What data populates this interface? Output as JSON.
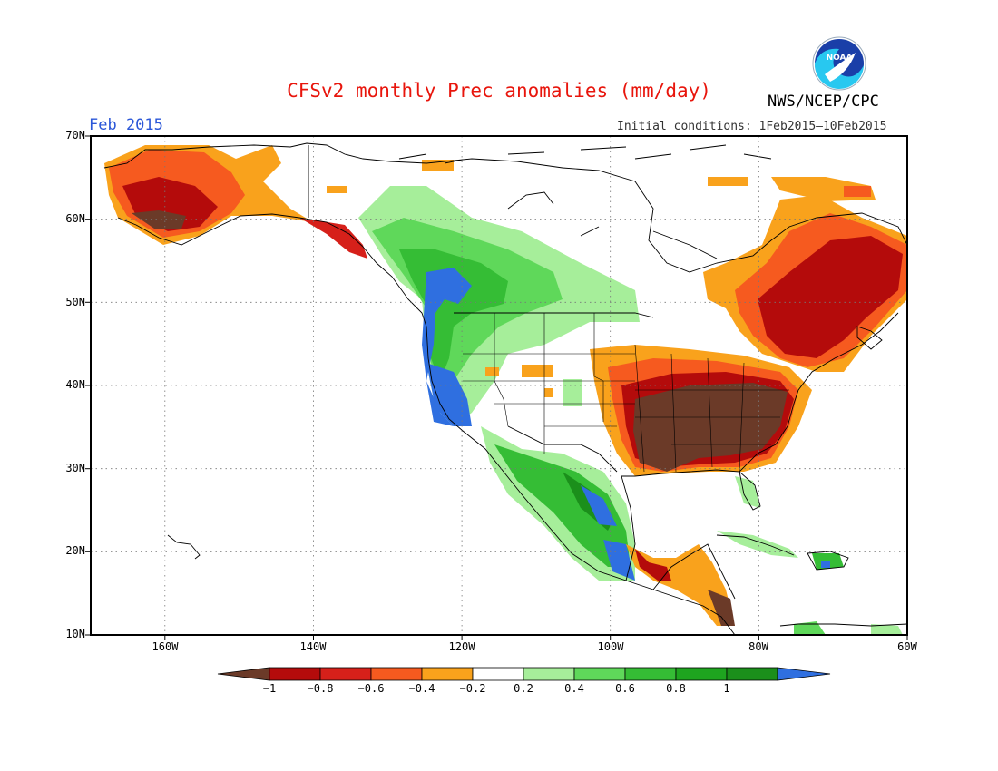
{
  "title": "CFSv2 monthly Prec anomalies (mm/day)",
  "agency": "NWS/NCEP/CPC",
  "logo_text": "NOAA",
  "month_label": "Feb 2015",
  "initial_conditions": "Initial conditions: 1Feb2015–10Feb2015",
  "lat_labels": [
    "70N",
    "60N",
    "50N",
    "40N",
    "30N",
    "20N",
    "10N"
  ],
  "lon_labels": [
    "160W",
    "140W",
    "120W",
    "100W",
    "80W",
    "60W"
  ],
  "colorbar": {
    "colors": [
      "#6b3a28",
      "#b40b0b",
      "#d6201a",
      "#f65a1f",
      "#f9a21c",
      "#ffffff",
      "#a6ee9a",
      "#5fd85a",
      "#35bd35",
      "#1ea51f",
      "#1b8f1b",
      "#2f6fe0"
    ],
    "labels": [
      "−1",
      "−0.8",
      "−0.6",
      "−0.4",
      "−0.2",
      "0.2",
      "0.4",
      "0.6",
      "0.8",
      "1"
    ]
  }
}
